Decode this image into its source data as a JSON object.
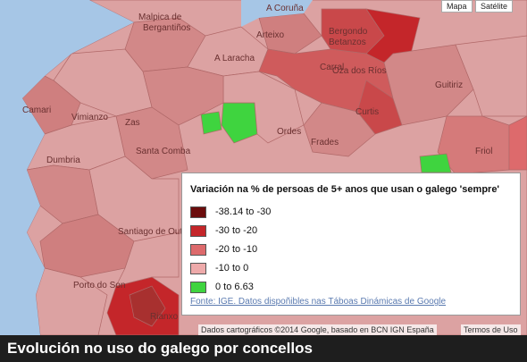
{
  "map_buttons": [
    "Mapa",
    "Satélite"
  ],
  "places": [
    "Malpica de",
    "Bergantiños",
    "A Coruña",
    "Arteixo",
    "Bergondo",
    "Betanzos",
    "A Laracha",
    "Carral",
    "Oza dos Ríos",
    "Guitiriz",
    "Camari",
    "Vimianzo",
    "Zas",
    "Curtis",
    "Ordes",
    "Frades",
    "Santa Comba",
    "Dumbria",
    "Friol",
    "Santiago de Oute",
    "Porto do Son",
    "Rianxo"
  ],
  "legend": {
    "title": "Variación na % de persoas de 5+ anos que usan o galego 'sempre'",
    "items": [
      {
        "label": "-38.14 to -30",
        "color": "#6b0c0c"
      },
      {
        "label": "-30 to -20",
        "color": "#c4262a"
      },
      {
        "label": "-20 to -10",
        "color": "#dd6a6c"
      },
      {
        "label": "-10 to 0",
        "color": "#eeaaaa"
      },
      {
        "label": "0 to 6.63",
        "color": "#3fd43f"
      }
    ],
    "source": "Fonte: IGE. Datos dispoñibles nas Táboas Dinámicas de Google"
  },
  "attribution": "Dados cartográficos ©2014 Google, basado en BCN IGN España",
  "terms": "Termos de Uso",
  "caption": "Evolución no uso do galego por concellos"
}
